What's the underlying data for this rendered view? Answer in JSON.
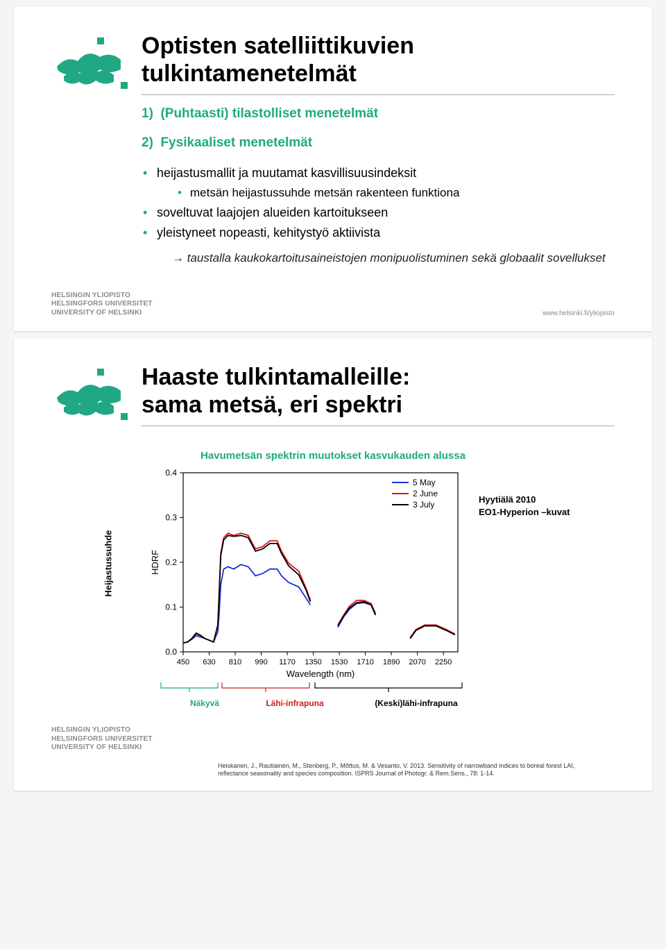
{
  "slide1": {
    "title_line1": "Optisten satelliittikuvien",
    "title_line2": "tulkintamenetelmät",
    "item1": "(Puhtaasti) tilastolliset menetelmät",
    "item2": "Fysikaaliset menetelmät",
    "b1": "heijastusmallit ja muutamat kasvillisuusindeksit",
    "b1a": "metsän heijastussuhde metsän rakenteen funktiona",
    "b2": "soveltuvat laajojen alueiden kartoitukseen",
    "b3": "yleistyneet nopeasti, kehitystyö aktiivista",
    "arrow": "→ taustalla kaukokartoitusaineistojen monipuolistuminen sekä globaalit sovellukset",
    "uni_l1": "HELSINGIN YLIOPISTO",
    "uni_l2": "HELSINGFORS UNIVERSITET",
    "uni_l3": "UNIVERSITY OF HELSINKI",
    "url": "www.helsinki.fi/yliopisto"
  },
  "slide2": {
    "title_line1": "Haaste tulkintamalleille:",
    "title_line2": "sama metsä, eri spektri",
    "chart_title": "Havumetsän spektrin muutokset kasvukauden alussa",
    "ylabel_outer": "Heijastussuhde",
    "ylabel_inner": "HDRF",
    "xlabel": "Wavelength (nm)",
    "legend": [
      "5 May",
      "2 June",
      "3 July"
    ],
    "legend_colors": [
      "#1830d8",
      "#d81818",
      "#000000"
    ],
    "xticks": [
      450,
      630,
      810,
      990,
      1170,
      1350,
      1530,
      1710,
      1890,
      2070,
      2250
    ],
    "yticks": [
      0.0,
      0.1,
      0.2,
      0.3,
      0.4
    ],
    "xlim": [
      450,
      2350
    ],
    "ylim": [
      0.0,
      0.4
    ],
    "bands": {
      "vis": "Näkyvä",
      "nir": "Lähi-infrapuna",
      "swir": "(Keski)lähi-infrapuna"
    },
    "sidenote_l1": "Hyytiälä 2010",
    "sidenote_l2": "EO1-Hyperion –kuvat",
    "series": {
      "may": {
        "color": "#1830d8",
        "data": [
          [
            450,
            0.02
          ],
          [
            480,
            0.022
          ],
          [
            510,
            0.028
          ],
          [
            540,
            0.036
          ],
          [
            570,
            0.033
          ],
          [
            600,
            0.03
          ],
          [
            630,
            0.026
          ],
          [
            660,
            0.022
          ],
          [
            690,
            0.045
          ],
          [
            700,
            0.09
          ],
          [
            710,
            0.15
          ],
          [
            730,
            0.185
          ],
          [
            760,
            0.19
          ],
          [
            800,
            0.185
          ],
          [
            850,
            0.195
          ],
          [
            900,
            0.19
          ],
          [
            950,
            0.17
          ],
          [
            1000,
            0.175
          ],
          [
            1050,
            0.185
          ],
          [
            1100,
            0.185
          ],
          [
            1130,
            0.17
          ],
          [
            1180,
            0.155
          ],
          [
            1250,
            0.145
          ],
          [
            1300,
            0.12
          ],
          [
            1330,
            0.105
          ],
          [
            1520,
            0.055
          ],
          [
            1560,
            0.078
          ],
          [
            1600,
            0.095
          ],
          [
            1650,
            0.108
          ],
          [
            1700,
            0.11
          ],
          [
            1750,
            0.105
          ],
          [
            1780,
            0.082
          ],
          [
            2020,
            0.03
          ],
          [
            2060,
            0.048
          ],
          [
            2120,
            0.058
          ],
          [
            2200,
            0.058
          ],
          [
            2270,
            0.048
          ],
          [
            2330,
            0.04
          ]
        ]
      },
      "june": {
        "color": "#d81818",
        "data": [
          [
            450,
            0.02
          ],
          [
            480,
            0.022
          ],
          [
            510,
            0.03
          ],
          [
            540,
            0.04
          ],
          [
            570,
            0.036
          ],
          [
            600,
            0.03
          ],
          [
            630,
            0.026
          ],
          [
            660,
            0.022
          ],
          [
            690,
            0.06
          ],
          [
            700,
            0.14
          ],
          [
            710,
            0.22
          ],
          [
            730,
            0.255
          ],
          [
            760,
            0.265
          ],
          [
            800,
            0.26
          ],
          [
            850,
            0.265
          ],
          [
            900,
            0.26
          ],
          [
            950,
            0.23
          ],
          [
            1000,
            0.235
          ],
          [
            1050,
            0.248
          ],
          [
            1100,
            0.248
          ],
          [
            1130,
            0.225
          ],
          [
            1180,
            0.198
          ],
          [
            1250,
            0.18
          ],
          [
            1300,
            0.142
          ],
          [
            1330,
            0.115
          ],
          [
            1520,
            0.06
          ],
          [
            1560,
            0.082
          ],
          [
            1600,
            0.102
          ],
          [
            1650,
            0.115
          ],
          [
            1700,
            0.115
          ],
          [
            1750,
            0.108
          ],
          [
            1780,
            0.086
          ],
          [
            2020,
            0.032
          ],
          [
            2060,
            0.05
          ],
          [
            2120,
            0.06
          ],
          [
            2200,
            0.06
          ],
          [
            2270,
            0.05
          ],
          [
            2330,
            0.04
          ]
        ]
      },
      "july": {
        "color": "#000000",
        "data": [
          [
            450,
            0.02
          ],
          [
            480,
            0.022
          ],
          [
            510,
            0.03
          ],
          [
            540,
            0.042
          ],
          [
            570,
            0.037
          ],
          [
            600,
            0.03
          ],
          [
            630,
            0.026
          ],
          [
            660,
            0.022
          ],
          [
            690,
            0.06
          ],
          [
            700,
            0.135
          ],
          [
            710,
            0.215
          ],
          [
            730,
            0.25
          ],
          [
            760,
            0.26
          ],
          [
            800,
            0.258
          ],
          [
            850,
            0.26
          ],
          [
            900,
            0.255
          ],
          [
            950,
            0.225
          ],
          [
            1000,
            0.23
          ],
          [
            1050,
            0.242
          ],
          [
            1100,
            0.242
          ],
          [
            1130,
            0.22
          ],
          [
            1180,
            0.192
          ],
          [
            1250,
            0.172
          ],
          [
            1300,
            0.138
          ],
          [
            1330,
            0.112
          ],
          [
            1520,
            0.058
          ],
          [
            1560,
            0.08
          ],
          [
            1600,
            0.098
          ],
          [
            1650,
            0.11
          ],
          [
            1700,
            0.112
          ],
          [
            1750,
            0.105
          ],
          [
            1780,
            0.083
          ],
          [
            2020,
            0.03
          ],
          [
            2060,
            0.048
          ],
          [
            2120,
            0.058
          ],
          [
            2200,
            0.058
          ],
          [
            2270,
            0.048
          ],
          [
            2330,
            0.038
          ]
        ]
      }
    },
    "uni_l1": "HELSINGIN YLIOPISTO",
    "uni_l2": "HELSINGFORS UNIVERSITET",
    "uni_l3": "UNIVERSITY OF HELSINKI",
    "citation": "Heiskanen, J., Rautiainen, M., Stenberg, P., Mõttus, M. & Vesanto, V. 2013. Sensitivity of narrowband indices to boreal forest LAI, reflectance seasonality and species composition. ISPRS Journal of Photogr. & Rem.Sens., 78: 1-14."
  },
  "colors": {
    "accent": "#20a884",
    "red": "#c82020",
    "blue": "#1830d8"
  }
}
